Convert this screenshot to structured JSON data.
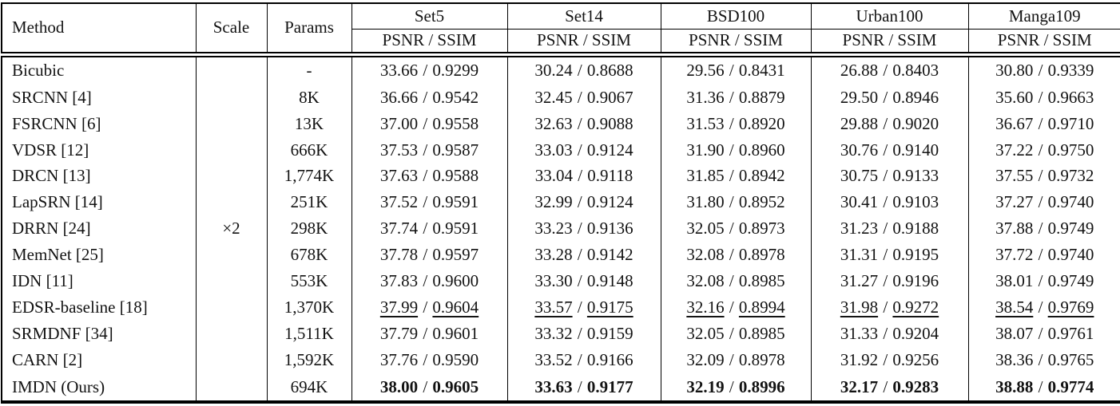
{
  "table": {
    "headers": {
      "method": "Method",
      "scale": "Scale",
      "params": "Params"
    },
    "scale_value": "×2",
    "separator": " / ",
    "datasets": [
      {
        "name": "Set5",
        "metric": "PSNR / SSIM"
      },
      {
        "name": "Set14",
        "metric": "PSNR / SSIM"
      },
      {
        "name": "BSD100",
        "metric": "PSNR / SSIM"
      },
      {
        "name": "Urban100",
        "metric": "PSNR / SSIM"
      },
      {
        "name": "Manga109",
        "metric": "PSNR / SSIM"
      }
    ],
    "rows": [
      {
        "method": "Bicubic",
        "params": "-",
        "style": "normal",
        "cells": [
          {
            "psnr": "33.66",
            "ssim": "0.9299"
          },
          {
            "psnr": "30.24",
            "ssim": "0.8688"
          },
          {
            "psnr": "29.56",
            "ssim": "0.8431"
          },
          {
            "psnr": "26.88",
            "ssim": "0.8403"
          },
          {
            "psnr": "30.80",
            "ssim": "0.9339"
          }
        ]
      },
      {
        "method": "SRCNN [4]",
        "params": "8K",
        "style": "normal",
        "cells": [
          {
            "psnr": "36.66",
            "ssim": "0.9542"
          },
          {
            "psnr": "32.45",
            "ssim": "0.9067"
          },
          {
            "psnr": "31.36",
            "ssim": "0.8879"
          },
          {
            "psnr": "29.50",
            "ssim": "0.8946"
          },
          {
            "psnr": "35.60",
            "ssim": "0.9663"
          }
        ]
      },
      {
        "method": "FSRCNN [6]",
        "params": "13K",
        "style": "normal",
        "cells": [
          {
            "psnr": "37.00",
            "ssim": "0.9558"
          },
          {
            "psnr": "32.63",
            "ssim": "0.9088"
          },
          {
            "psnr": "31.53",
            "ssim": "0.8920"
          },
          {
            "psnr": "29.88",
            "ssim": "0.9020"
          },
          {
            "psnr": "36.67",
            "ssim": "0.9710"
          }
        ]
      },
      {
        "method": "VDSR [12]",
        "params": "666K",
        "style": "normal",
        "cells": [
          {
            "psnr": "37.53",
            "ssim": "0.9587"
          },
          {
            "psnr": "33.03",
            "ssim": "0.9124"
          },
          {
            "psnr": "31.90",
            "ssim": "0.8960"
          },
          {
            "psnr": "30.76",
            "ssim": "0.9140"
          },
          {
            "psnr": "37.22",
            "ssim": "0.9750"
          }
        ]
      },
      {
        "method": "DRCN [13]",
        "params": "1,774K",
        "style": "normal",
        "cells": [
          {
            "psnr": "37.63",
            "ssim": "0.9588"
          },
          {
            "psnr": "33.04",
            "ssim": "0.9118"
          },
          {
            "psnr": "31.85",
            "ssim": "0.8942"
          },
          {
            "psnr": "30.75",
            "ssim": "0.9133"
          },
          {
            "psnr": "37.55",
            "ssim": "0.9732"
          }
        ]
      },
      {
        "method": "LapSRN [14]",
        "params": "251K",
        "style": "normal",
        "cells": [
          {
            "psnr": "37.52",
            "ssim": "0.9591"
          },
          {
            "psnr": "32.99",
            "ssim": "0.9124"
          },
          {
            "psnr": "31.80",
            "ssim": "0.8952"
          },
          {
            "psnr": "30.41",
            "ssim": "0.9103"
          },
          {
            "psnr": "37.27",
            "ssim": "0.9740"
          }
        ]
      },
      {
        "method": "DRRN [24]",
        "params": "298K",
        "style": "normal",
        "cells": [
          {
            "psnr": "37.74",
            "ssim": "0.9591"
          },
          {
            "psnr": "33.23",
            "ssim": "0.9136"
          },
          {
            "psnr": "32.05",
            "ssim": "0.8973"
          },
          {
            "psnr": "31.23",
            "ssim": "0.9188"
          },
          {
            "psnr": "37.88",
            "ssim": "0.9749"
          }
        ]
      },
      {
        "method": "MemNet [25]",
        "params": "678K",
        "style": "normal",
        "cells": [
          {
            "psnr": "37.78",
            "ssim": "0.9597"
          },
          {
            "psnr": "33.28",
            "ssim": "0.9142"
          },
          {
            "psnr": "32.08",
            "ssim": "0.8978"
          },
          {
            "psnr": "31.31",
            "ssim": "0.9195"
          },
          {
            "psnr": "37.72",
            "ssim": "0.9740"
          }
        ]
      },
      {
        "method": "IDN [11]",
        "params": "553K",
        "style": "normal",
        "cells": [
          {
            "psnr": "37.83",
            "ssim": "0.9600"
          },
          {
            "psnr": "33.30",
            "ssim": "0.9148"
          },
          {
            "psnr": "32.08",
            "ssim": "0.8985"
          },
          {
            "psnr": "31.27",
            "ssim": "0.9196"
          },
          {
            "psnr": "38.01",
            "ssim": "0.9749"
          }
        ]
      },
      {
        "method": "EDSR-baseline [18]",
        "params": "1,370K",
        "style": "underline",
        "cells": [
          {
            "psnr": "37.99",
            "ssim": "0.9604"
          },
          {
            "psnr": "33.57",
            "ssim": "0.9175"
          },
          {
            "psnr": "32.16",
            "ssim": "0.8994"
          },
          {
            "psnr": "31.98",
            "ssim": "0.9272"
          },
          {
            "psnr": "38.54",
            "ssim": "0.9769"
          }
        ]
      },
      {
        "method": "SRMDNF [34]",
        "params": "1,511K",
        "style": "normal",
        "cells": [
          {
            "psnr": "37.79",
            "ssim": "0.9601"
          },
          {
            "psnr": "33.32",
            "ssim": "0.9159"
          },
          {
            "psnr": "32.05",
            "ssim": "0.8985"
          },
          {
            "psnr": "31.33",
            "ssim": "0.9204"
          },
          {
            "psnr": "38.07",
            "ssim": "0.9761"
          }
        ]
      },
      {
        "method": "CARN [2]",
        "params": "1,592K",
        "style": "normal",
        "cells": [
          {
            "psnr": "37.76",
            "ssim": "0.9590"
          },
          {
            "psnr": "33.52",
            "ssim": "0.9166"
          },
          {
            "psnr": "32.09",
            "ssim": "0.8978"
          },
          {
            "psnr": "31.92",
            "ssim": "0.9256"
          },
          {
            "psnr": "38.36",
            "ssim": "0.9765"
          }
        ]
      },
      {
        "method": "IMDN (Ours)",
        "params": "694K",
        "style": "bold",
        "cells": [
          {
            "psnr": "38.00",
            "ssim": "0.9605"
          },
          {
            "psnr": "33.63",
            "ssim": "0.9177"
          },
          {
            "psnr": "32.19",
            "ssim": "0.8996"
          },
          {
            "psnr": "32.17",
            "ssim": "0.9283"
          },
          {
            "psnr": "38.88",
            "ssim": "0.9774"
          }
        ]
      }
    ]
  }
}
